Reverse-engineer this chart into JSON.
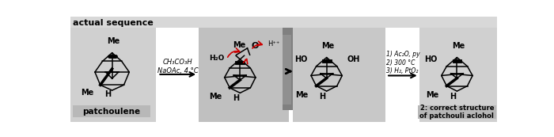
{
  "title": "actual sequence",
  "title_fontsize": 8,
  "background_color": "#ffffff",
  "label_patchoulene": "patchoulene",
  "label_correct": "2: correct structure\nof patchouli aclohol",
  "reagents1": "CH₃CO₃H\nNaOAc, 4 °C",
  "reagents2": "1) Ac₂O, py\n2) 300 °C\n3) H₂, PtO₂",
  "red_arrow_color": "#cc0000",
  "title_bar_color": "#d8d8d8",
  "panel1_color": "#d0d0d0",
  "panel2_color": "#c0c0c0",
  "panel3_color": "#c8c8c8",
  "panel4_color": "#d0d0d0",
  "divider_color": "#808080",
  "label_bg": "#b8b8b8"
}
